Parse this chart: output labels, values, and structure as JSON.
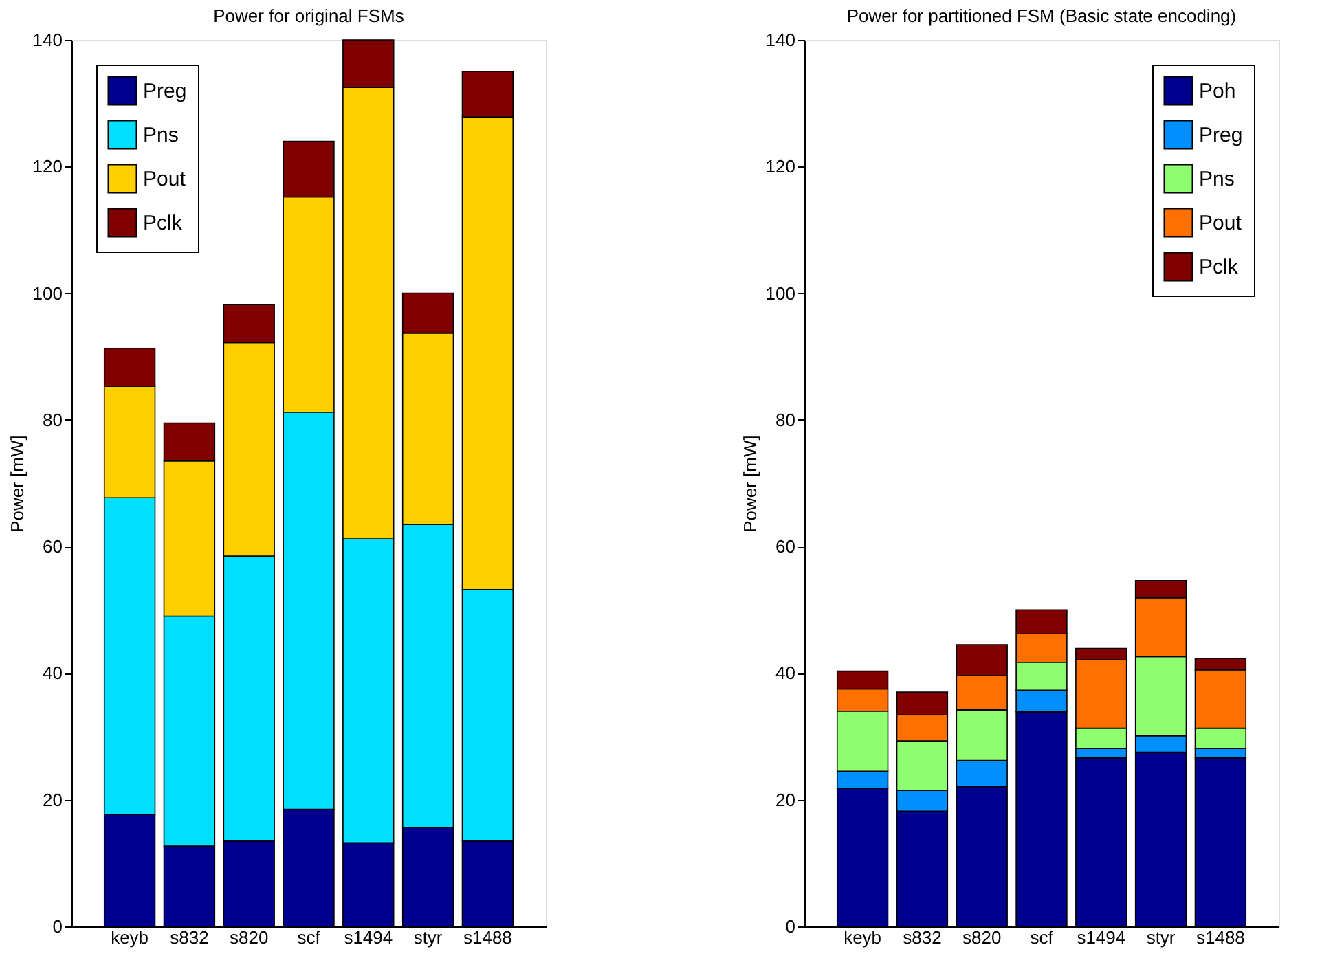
{
  "chart_data": [
    {
      "type": "bar",
      "stacked": true,
      "title": "Power for original FSMs",
      "ylabel": "Power [mW]",
      "categories": [
        "keyb",
        "s832",
        "s820",
        "scf",
        "s1494",
        "styr",
        "s1488"
      ],
      "ylim": [
        0,
        140
      ],
      "yticks": [
        0,
        20,
        40,
        60,
        80,
        100,
        120,
        140
      ],
      "grid": false,
      "legend": "top left",
      "series": [
        {
          "name": "Preg",
          "color": "#00008f",
          "values": [
            17.7,
            12.7,
            13.5,
            18.5,
            13.2,
            15.6,
            13.5
          ]
        },
        {
          "name": "Pns",
          "color": "#00dfff",
          "values": [
            50.0,
            36.3,
            45.0,
            62.7,
            48.0,
            47.9,
            39.7
          ]
        },
        {
          "name": "Pout",
          "color": "#ffcf00",
          "values": [
            17.6,
            24.5,
            33.7,
            34.0,
            71.3,
            30.2,
            74.6
          ]
        },
        {
          "name": "Pclk",
          "color": "#800000",
          "values": [
            6.0,
            6.0,
            6.0,
            8.8,
            7.5,
            6.3,
            7.2
          ]
        }
      ]
    },
    {
      "type": "bar",
      "stacked": true,
      "title": "Power for partitioned FSM (Basic state encoding)",
      "ylabel": "Power [mW]",
      "categories": [
        "keyb",
        "s832",
        "s820",
        "scf",
        "s1494",
        "styr",
        "s1488"
      ],
      "ylim": [
        0,
        140
      ],
      "yticks": [
        0,
        20,
        40,
        60,
        80,
        100,
        120,
        140
      ],
      "grid": false,
      "legend": "top right",
      "series": [
        {
          "name": "Poh",
          "color": "#00008f",
          "values": [
            21.8,
            18.2,
            22.1,
            33.9,
            26.6,
            27.5,
            26.6
          ]
        },
        {
          "name": "Preg",
          "color": "#008fff",
          "values": [
            2.7,
            3.3,
            4.1,
            3.4,
            1.5,
            2.6,
            1.5
          ]
        },
        {
          "name": "Pns",
          "color": "#8fff70",
          "values": [
            9.5,
            7.8,
            8.0,
            4.4,
            3.2,
            12.5,
            3.2
          ]
        },
        {
          "name": "Pout",
          "color": "#ff7000",
          "values": [
            3.5,
            4.1,
            5.4,
            4.5,
            10.8,
            9.3,
            9.2
          ]
        },
        {
          "name": "Pclk",
          "color": "#800000",
          "values": [
            2.8,
            3.6,
            4.9,
            3.8,
            1.8,
            2.7,
            1.8
          ]
        }
      ]
    }
  ]
}
